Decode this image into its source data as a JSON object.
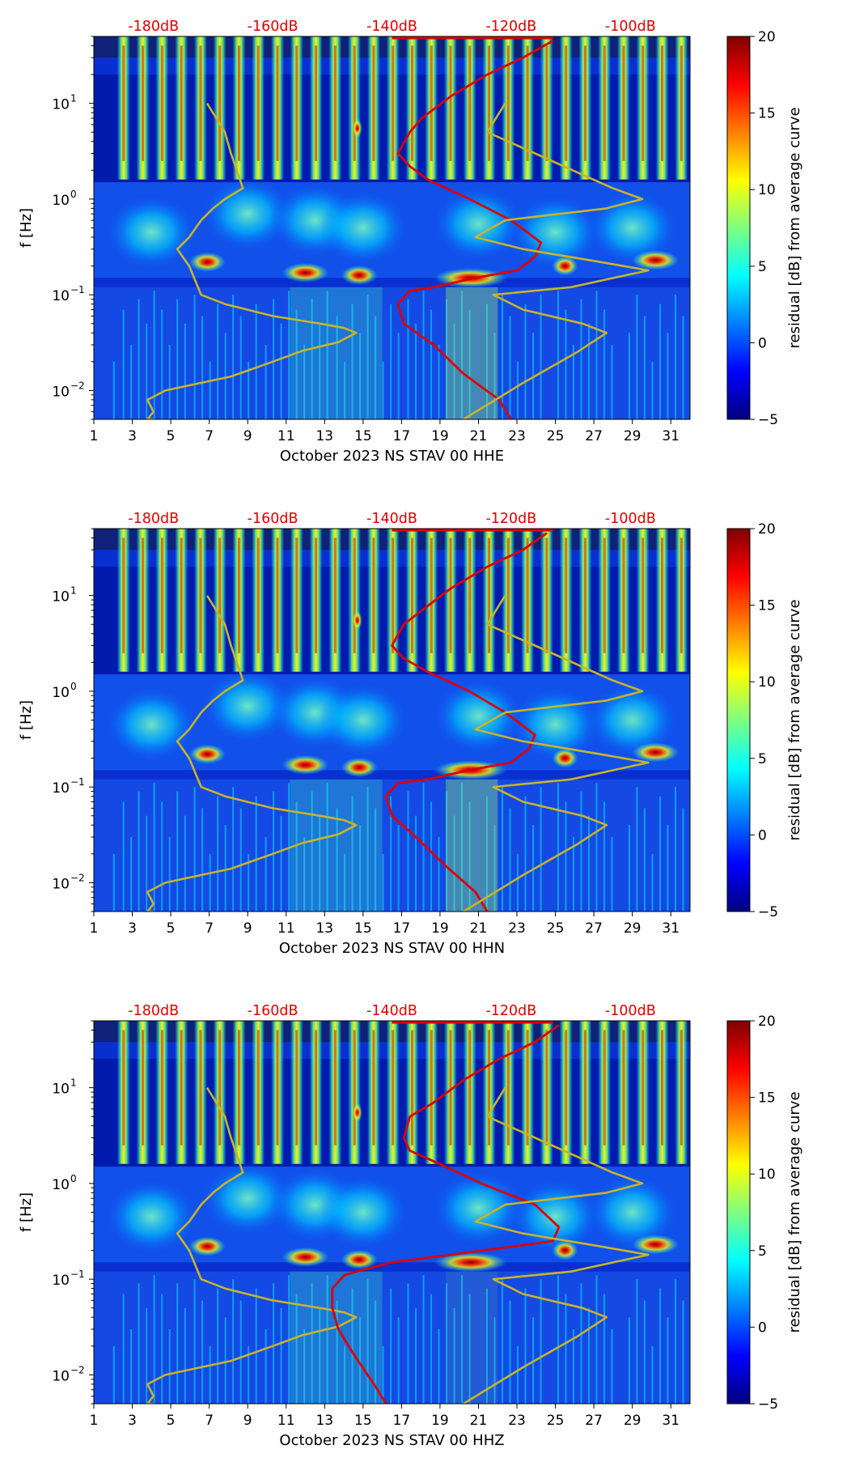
{
  "chart_data": [
    {
      "type": "heatmap",
      "xlabel": "October 2023 NS STAV 00 HHE",
      "ylabel": "f [Hz]",
      "colorbar_label": "residual [dB] from average curve",
      "x_ticks": [
        "1",
        "3",
        "5",
        "7",
        "9",
        "11",
        "13",
        "15",
        "17",
        "19",
        "21",
        "23",
        "25",
        "27",
        "29",
        "31"
      ],
      "y_ticks": [
        {
          "base": "10",
          "exp": "1"
        },
        {
          "base": "10",
          "exp": "0"
        },
        {
          "base": "10",
          "exp": "−1"
        },
        {
          "base": "10",
          "exp": "−2"
        }
      ],
      "top_labels": [
        "-180dB",
        "-160dB",
        "-140dB",
        "-120dB",
        "-100dB"
      ],
      "colorbar_ticks": [
        "−5",
        "0",
        "5",
        "10",
        "15",
        "20"
      ],
      "xlim": [
        1,
        32
      ],
      "ylim": [
        0.005,
        50
      ],
      "y_scale": "log",
      "clim": [
        -5,
        20
      ],
      "colormap": "jet",
      "top_axis_db_range": [
        -190,
        -90
      ],
      "series": [
        {
          "color": "#c8b428",
          "db": [
            -171,
            -168,
            -167,
            -165,
            -168,
            -170,
            -172,
            -174,
            -176,
            -174,
            -172,
            -168,
            -160,
            -152,
            -148,
            -146,
            -149,
            -155,
            -160,
            -167,
            -178,
            -181,
            -180,
            -181,
            -180,
            -180
          ],
          "f": [
            10,
            5,
            3,
            1.3,
            1,
            0.8,
            0.6,
            0.4,
            0.3,
            0.2,
            0.1,
            0.08,
            0.06,
            0.05,
            0.045,
            0.04,
            0.032,
            0.026,
            0.02,
            0.014,
            0.01,
            0.008,
            0.006,
            0.005,
            0.005,
            0.005
          ]
        },
        {
          "color": "#dd0000",
          "db": [
            -113,
            -118,
            -124,
            -130,
            -135,
            -137,
            -139,
            -137,
            -134,
            -127,
            -120,
            -115,
            -116,
            -119,
            -126,
            -133,
            -137,
            -139,
            -138,
            -133,
            -128,
            -122,
            -120
          ],
          "f": [
            45,
            30,
            20,
            12,
            7,
            5,
            3,
            2.2,
            1.6,
            1,
            0.6,
            0.35,
            0.25,
            0.18,
            0.15,
            0.12,
            0.11,
            0.08,
            0.05,
            0.03,
            0.015,
            0.008,
            0.005
          ]
        },
        {
          "color": "#c8b428",
          "db": [
            -121,
            -124,
            -116,
            -103,
            -98,
            -104,
            -121,
            -126,
            -118,
            -105,
            -97,
            -110,
            -123,
            -118,
            -108,
            -104,
            -109,
            -118,
            -128
          ],
          "f": [
            10,
            5,
            3,
            1.3,
            1,
            0.8,
            0.6,
            0.4,
            0.3,
            0.22,
            0.18,
            0.12,
            0.1,
            0.07,
            0.05,
            0.04,
            0.025,
            0.012,
            0.005
          ]
        }
      ]
    },
    {
      "type": "heatmap",
      "xlabel": "October 2023 NS STAV 00 HHN",
      "ylabel": "f [Hz]",
      "colorbar_label": "residual [dB] from average curve",
      "x_ticks": [
        "1",
        "3",
        "5",
        "7",
        "9",
        "11",
        "13",
        "15",
        "17",
        "19",
        "21",
        "23",
        "25",
        "27",
        "29",
        "31"
      ],
      "y_ticks": [
        {
          "base": "10",
          "exp": "1"
        },
        {
          "base": "10",
          "exp": "0"
        },
        {
          "base": "10",
          "exp": "−1"
        },
        {
          "base": "10",
          "exp": "−2"
        }
      ],
      "top_labels": [
        "-180dB",
        "-160dB",
        "-140dB",
        "-120dB",
        "-100dB"
      ],
      "colorbar_ticks": [
        "−5",
        "0",
        "5",
        "10",
        "15",
        "20"
      ],
      "xlim": [
        1,
        32
      ],
      "ylim": [
        0.005,
        50
      ],
      "y_scale": "log",
      "clim": [
        -5,
        20
      ],
      "colormap": "jet",
      "top_axis_db_range": [
        -190,
        -90
      ],
      "series": [
        {
          "color": "#c8b428",
          "db": [
            -171,
            -168,
            -167,
            -165,
            -168,
            -170,
            -172,
            -174,
            -176,
            -174,
            -172,
            -168,
            -160,
            -152,
            -148,
            -146,
            -149,
            -155,
            -160,
            -167,
            -178,
            -181,
            -180,
            -181,
            -180,
            -180
          ],
          "f": [
            10,
            5,
            3,
            1.3,
            1,
            0.8,
            0.6,
            0.4,
            0.3,
            0.2,
            0.1,
            0.08,
            0.06,
            0.05,
            0.045,
            0.04,
            0.032,
            0.026,
            0.02,
            0.014,
            0.01,
            0.008,
            0.006,
            0.005,
            0.005,
            0.005
          ]
        },
        {
          "color": "#dd0000",
          "db": [
            -114,
            -118,
            -124,
            -130,
            -135,
            -138,
            -140,
            -138,
            -134,
            -127,
            -121,
            -116,
            -117,
            -120,
            -127,
            -134,
            -139,
            -141,
            -140,
            -136,
            -131,
            -126,
            -124
          ],
          "f": [
            45,
            30,
            20,
            12,
            7,
            5,
            3,
            2.2,
            1.6,
            1,
            0.6,
            0.35,
            0.25,
            0.18,
            0.15,
            0.12,
            0.11,
            0.08,
            0.05,
            0.03,
            0.015,
            0.008,
            0.005
          ]
        },
        {
          "color": "#c8b428",
          "db": [
            -121,
            -124,
            -116,
            -103,
            -98,
            -104,
            -121,
            -126,
            -118,
            -105,
            -97,
            -110,
            -123,
            -118,
            -108,
            -104,
            -109,
            -118,
            -128
          ],
          "f": [
            10,
            5,
            3,
            1.3,
            1,
            0.8,
            0.6,
            0.4,
            0.3,
            0.22,
            0.18,
            0.12,
            0.1,
            0.07,
            0.05,
            0.04,
            0.025,
            0.012,
            0.005
          ]
        }
      ]
    },
    {
      "type": "heatmap",
      "xlabel": "October 2023 NS STAV 00 HHZ",
      "ylabel": "f [Hz]",
      "colorbar_label": "residual [dB] from average curve",
      "x_ticks": [
        "1",
        "3",
        "5",
        "7",
        "9",
        "11",
        "13",
        "15",
        "17",
        "19",
        "21",
        "23",
        "25",
        "27",
        "29",
        "31"
      ],
      "y_ticks": [
        {
          "base": "10",
          "exp": "1"
        },
        {
          "base": "10",
          "exp": "0"
        },
        {
          "base": "10",
          "exp": "−1"
        },
        {
          "base": "10",
          "exp": "−2"
        }
      ],
      "top_labels": [
        "-180dB",
        "-160dB",
        "-140dB",
        "-120dB",
        "-100dB"
      ],
      "colorbar_ticks": [
        "−5",
        "0",
        "5",
        "10",
        "15",
        "20"
      ],
      "xlim": [
        1,
        32
      ],
      "ylim": [
        0.005,
        50
      ],
      "y_scale": "log",
      "clim": [
        -5,
        20
      ],
      "colormap": "jet",
      "top_axis_db_range": [
        -190,
        -90
      ],
      "series": [
        {
          "color": "#c8b428",
          "db": [
            -171,
            -168,
            -167,
            -165,
            -168,
            -170,
            -172,
            -174,
            -176,
            -174,
            -172,
            -168,
            -160,
            -152,
            -148,
            -146,
            -149,
            -155,
            -160,
            -167,
            -178,
            -181,
            -180,
            -181,
            -180,
            -180
          ],
          "f": [
            10,
            5,
            3,
            1.3,
            1,
            0.8,
            0.6,
            0.4,
            0.3,
            0.2,
            0.1,
            0.08,
            0.06,
            0.05,
            0.045,
            0.04,
            0.032,
            0.026,
            0.02,
            0.014,
            0.01,
            0.008,
            0.006,
            0.005,
            0.005,
            0.005
          ]
        },
        {
          "color": "#dd0000",
          "db": [
            -112,
            -116,
            -122,
            -128,
            -133,
            -137,
            -138,
            -137,
            -132,
            -125,
            -116,
            -112,
            -113,
            -130,
            -140,
            -146,
            -148,
            -150,
            -150,
            -149,
            -146,
            -143,
            -141
          ],
          "f": [
            45,
            30,
            20,
            12,
            7,
            5,
            3,
            2.2,
            1.6,
            1,
            0.6,
            0.35,
            0.25,
            0.18,
            0.15,
            0.12,
            0.11,
            0.08,
            0.05,
            0.03,
            0.015,
            0.008,
            0.005
          ]
        },
        {
          "color": "#c8b428",
          "db": [
            -121,
            -124,
            -116,
            -103,
            -98,
            -104,
            -121,
            -126,
            -118,
            -105,
            -97,
            -110,
            -123,
            -118,
            -108,
            -104,
            -109,
            -118,
            -128
          ],
          "f": [
            10,
            5,
            3,
            1.3,
            1,
            0.8,
            0.6,
            0.4,
            0.3,
            0.22,
            0.18,
            0.12,
            0.1,
            0.07,
            0.05,
            0.04,
            0.025,
            0.012,
            0.005
          ]
        }
      ]
    }
  ]
}
